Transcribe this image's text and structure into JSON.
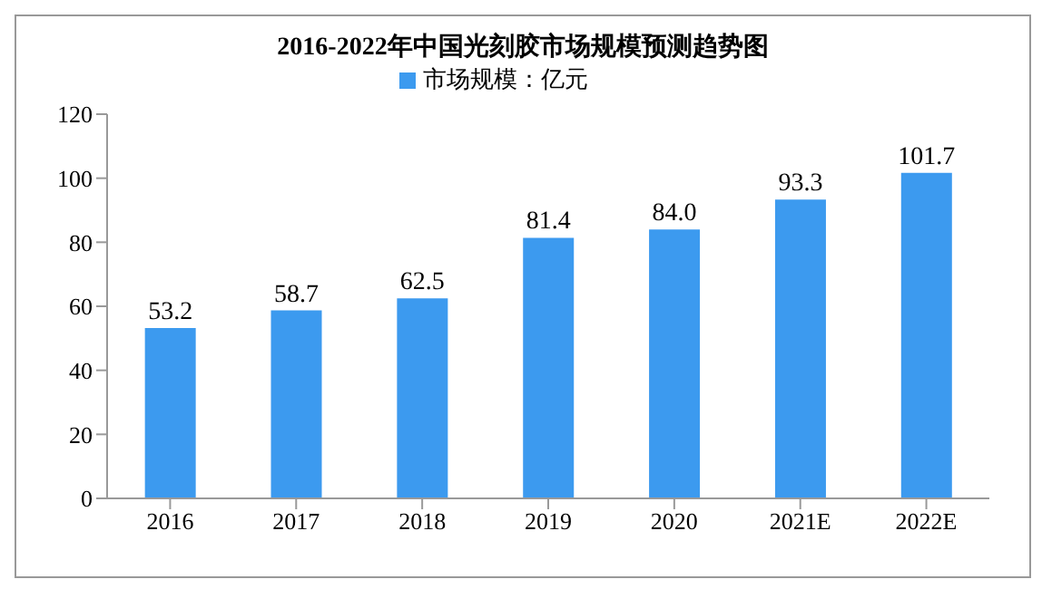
{
  "chart_data": {
    "type": "bar",
    "title": "2016-2022年中国光刻胶市场规模预测趋势图",
    "categories": [
      "2016",
      "2017",
      "2018",
      "2019",
      "2020",
      "2021E",
      "2022E"
    ],
    "series": [
      {
        "name": "市场规模：亿元",
        "color": "#3c9aef",
        "values": [
          53.2,
          58.7,
          62.5,
          81.4,
          84.0,
          93.3,
          101.7
        ],
        "value_labels": [
          "53.2",
          "58.7",
          "62.5",
          "81.4",
          "84.0",
          "93.3",
          "101.7"
        ]
      }
    ],
    "ylim": [
      0,
      120
    ],
    "yticks": [
      0,
      20,
      40,
      60,
      80,
      100,
      120
    ],
    "grid": false,
    "legend": "top"
  }
}
